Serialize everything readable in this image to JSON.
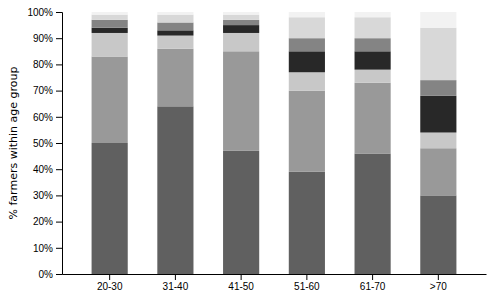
{
  "chart_data": {
    "type": "bar",
    "stacked": true,
    "ylabel": "% farmers within age group",
    "categories": [
      "20-30",
      "31-40",
      "41-50",
      "51-60",
      "61-70",
      ">70"
    ],
    "series": [
      {
        "color": "#606060",
        "values": [
          50,
          64,
          47,
          39,
          46,
          30
        ]
      },
      {
        "color": "#999999",
        "values": [
          33,
          22,
          38,
          31,
          27,
          18
        ]
      },
      {
        "color": "#c8c8c8",
        "values": [
          9,
          5,
          7,
          7,
          5,
          6
        ]
      },
      {
        "color": "#282828",
        "values": [
          2,
          2,
          3,
          8,
          7,
          14
        ]
      },
      {
        "color": "#848484",
        "values": [
          3,
          3,
          2,
          5,
          5,
          6
        ]
      },
      {
        "color": "#d8d8d8",
        "values": [
          2,
          3,
          2,
          8,
          8,
          20
        ]
      },
      {
        "color": "#f2f2f2",
        "values": [
          1,
          1,
          1,
          2,
          2,
          6
        ]
      }
    ],
    "ylim": [
      0,
      100
    ],
    "yticks": [
      {
        "value": 0,
        "label": "0%"
      },
      {
        "value": 10,
        "label": "10%"
      },
      {
        "value": 20,
        "label": "20%"
      },
      {
        "value": 30,
        "label": "30%"
      },
      {
        "value": 40,
        "label": "40%"
      },
      {
        "value": 50,
        "label": "50%"
      },
      {
        "value": 60,
        "label": "60%"
      },
      {
        "value": 70,
        "label": "70%"
      },
      {
        "value": 80,
        "label": "80%"
      },
      {
        "value": 90,
        "label": "90%"
      },
      {
        "value": 100,
        "label": "100%"
      }
    ],
    "grid": false
  }
}
